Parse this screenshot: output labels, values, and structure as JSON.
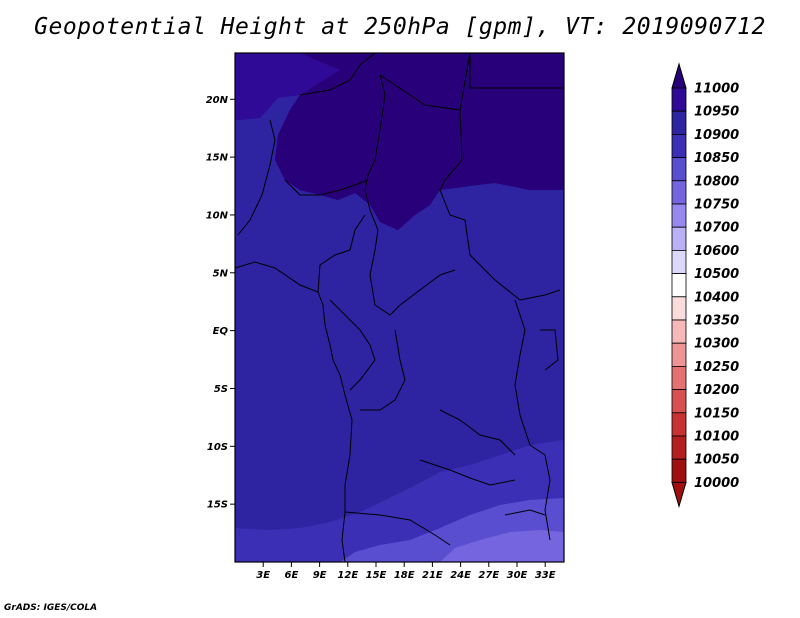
{
  "title": "Geopotential Height at 250hPa [gpm], VT: 2019090712",
  "credit": "GrADS: IGES/COLA",
  "map": {
    "lon_range": [
      0,
      35
    ],
    "lat_range": [
      -20,
      24
    ],
    "lon_ticks": [
      "3E",
      "6E",
      "9E",
      "12E",
      "15E",
      "18E",
      "21E",
      "24E",
      "27E",
      "30E",
      "33E"
    ],
    "lat_ticks": [
      "20N",
      "15N",
      "10N",
      "5N",
      "EQ",
      "5S",
      "10S",
      "15S"
    ]
  },
  "colorbar": {
    "levels": [
      "11000",
      "10950",
      "10900",
      "10850",
      "10800",
      "10750",
      "10700",
      "10600",
      "10500",
      "10400",
      "10350",
      "10300",
      "10250",
      "10200",
      "10150",
      "10100",
      "10050",
      "10000"
    ],
    "colors": [
      "#28007a",
      "#2e0a96",
      "#2e23a0",
      "#3b2fb5",
      "#5a4ed0",
      "#7566e0",
      "#9688ee",
      "#b9b0f5",
      "#dcd8fb",
      "#ffffff",
      "#fbdcdc",
      "#f6b9b9",
      "#ee9494",
      "#e47272",
      "#d85050",
      "#c83232",
      "#b51e1e",
      "#a00f0f"
    ]
  },
  "fields": {
    "bg": "#2e23a0",
    "high": "#2e0a96",
    "top_high": "#28007a",
    "low1": "#3b2fb5",
    "low2": "#5a4ed0",
    "low3": "#7566e0"
  }
}
